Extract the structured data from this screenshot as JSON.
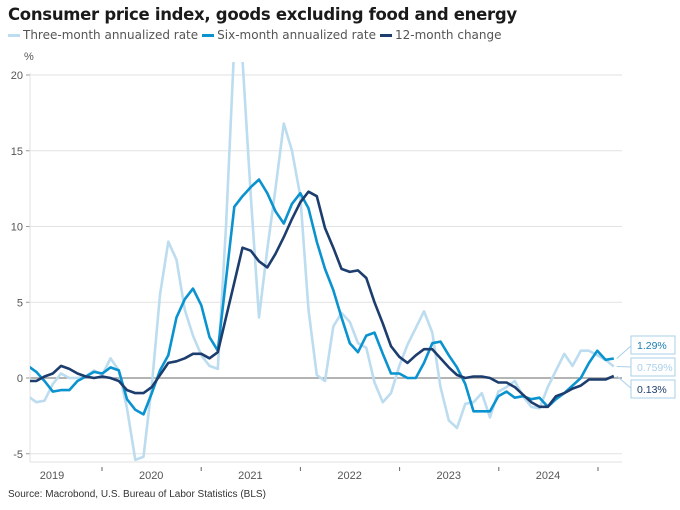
{
  "chart_data": {
    "type": "line",
    "title": "Consumer price index, goods excluding food and energy",
    "ylabel": "%",
    "xlabel": "",
    "ylim": [
      -5,
      20
    ],
    "yticks": [
      -5,
      0,
      5,
      10,
      15,
      20
    ],
    "ytick_labels": [
      "-5",
      "0",
      "5",
      "10",
      "15",
      "20"
    ],
    "x_start": "2019-04",
    "x_end": "2025-03",
    "frequency": "monthly",
    "xtick_labels": [
      "2019",
      "2020",
      "2021",
      "2022",
      "2023",
      "2024"
    ],
    "grid": true,
    "legend_position": "top-left",
    "series": [
      {
        "name": "Three-month annualized rate",
        "color": "#bcdcef",
        "values": [
          -1.2,
          -1.6,
          -1.5,
          -0.4,
          0.3,
          0.0,
          0.0,
          0.1,
          0.5,
          0.2,
          1.3,
          0.5,
          -2.0,
          -5.4,
          -5.2,
          -0.5,
          5.5,
          9.0,
          7.8,
          4.5,
          2.8,
          1.5,
          0.8,
          0.6,
          10.0,
          22.0,
          21.0,
          12.0,
          4.0,
          8.5,
          12.5,
          16.8,
          15.0,
          12.0,
          4.5,
          0.2,
          -0.2,
          3.4,
          4.3,
          3.7,
          2.3,
          2.0,
          -0.3,
          -1.6,
          -1.0,
          0.8,
          2.2,
          3.3,
          4.4,
          3.0,
          -0.6,
          -2.8,
          -3.3,
          -1.7,
          -1.6,
          -1.0,
          -2.6,
          -0.9,
          -0.6,
          -0.2,
          -1.2,
          -1.9,
          -2.0,
          -0.6,
          0.5,
          1.6,
          0.8,
          1.8,
          1.8,
          1.5,
          1.2,
          0.759
        ]
      },
      {
        "name": "Six-month annualized rate",
        "color": "#0a93cf",
        "values": [
          0.8,
          0.4,
          -0.2,
          -0.9,
          -0.8,
          -0.8,
          -0.2,
          0.1,
          0.4,
          0.3,
          0.7,
          0.5,
          -1.4,
          -2.1,
          -2.4,
          -1.0,
          0.5,
          1.5,
          4.0,
          5.2,
          5.9,
          4.8,
          2.7,
          1.8,
          6.5,
          11.3,
          12.0,
          12.6,
          13.1,
          12.2,
          11.0,
          10.2,
          11.5,
          12.2,
          11.2,
          9.0,
          7.2,
          5.8,
          4.0,
          2.3,
          1.7,
          2.8,
          3.0,
          1.6,
          0.3,
          0.3,
          0.0,
          0.0,
          1.0,
          2.3,
          2.4,
          1.5,
          0.7,
          -0.4,
          -2.2,
          -2.2,
          -2.2,
          -1.2,
          -0.9,
          -1.3,
          -1.2,
          -1.4,
          -1.3,
          -1.9,
          -1.4,
          -1.0,
          -0.5,
          0.0,
          1.0,
          1.8,
          1.2,
          1.29
        ]
      },
      {
        "name": "12-month change",
        "color": "#1d3d6e",
        "values": [
          -0.2,
          -0.2,
          0.1,
          0.3,
          0.8,
          0.6,
          0.3,
          0.1,
          0.0,
          0.1,
          0.0,
          -0.2,
          -0.8,
          -1.0,
          -1.0,
          -0.6,
          0.2,
          1.0,
          1.1,
          1.3,
          1.6,
          1.6,
          1.3,
          1.7,
          4.0,
          6.3,
          8.6,
          8.4,
          7.7,
          7.3,
          8.2,
          9.3,
          10.5,
          11.6,
          12.3,
          12.0,
          9.9,
          8.6,
          7.2,
          7.0,
          7.1,
          6.6,
          5.0,
          3.6,
          2.1,
          1.4,
          1.0,
          1.5,
          1.9,
          1.9,
          1.3,
          0.7,
          0.2,
          0.0,
          0.1,
          0.1,
          0.0,
          -0.3,
          -0.3,
          -0.6,
          -1.1,
          -1.6,
          -1.9,
          -1.9,
          -1.2,
          -1.0,
          -0.7,
          -0.5,
          -0.1,
          -0.1,
          -0.1,
          0.13
        ]
      }
    ],
    "end_labels": [
      "1.29%",
      "0.759%",
      "0.13%"
    ],
    "source": "Source: Macrobond, U.S. Bureau of Labor Statistics (BLS)"
  }
}
